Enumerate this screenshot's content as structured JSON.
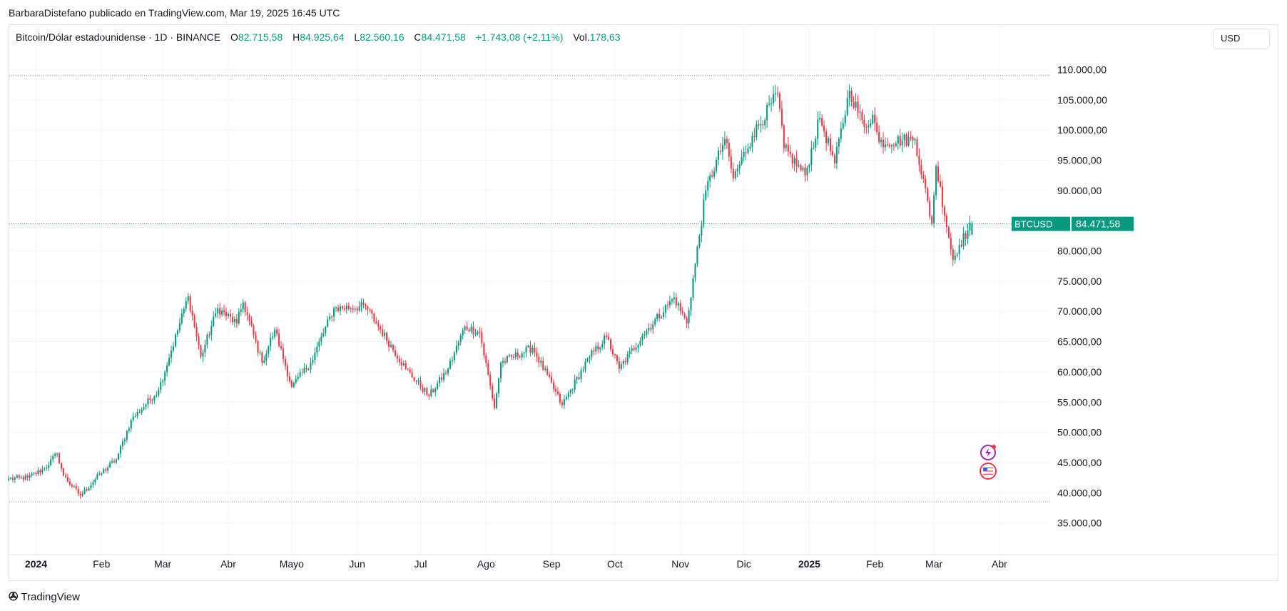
{
  "header": {
    "published": "BarbaraDistefano publicado en TradingView.com, Mar 19, 2025 16:45 UTC"
  },
  "legend": {
    "symbol": "Bitcoin/Dólar estadounidense · 1D · BINANCE",
    "o_label": "O",
    "o_value": "82.715,58",
    "h_label": "H",
    "h_value": "84.925,64",
    "l_label": "L",
    "l_value": "82.560,16",
    "c_label": "C",
    "c_value": "84.471,58",
    "change": "+1.743,08 (+2,11%)",
    "vol_label": "Vol.",
    "vol_value": "178,63"
  },
  "currency_button": "USD",
  "price_tag": {
    "symbol": "BTCUSD",
    "price": "84.471,58",
    "color": "#089981"
  },
  "footer": {
    "brand": "TradingView"
  },
  "colors": {
    "up": "#089981",
    "down": "#f23645",
    "grid": "#f0f3fa",
    "text": "#131722"
  },
  "icons": [
    "lightning-event-icon",
    "us-flag-event-icon"
  ],
  "chart_data": {
    "type": "candlestick",
    "ylim": [
      30000,
      113000
    ],
    "y_ticks": [
      {
        "value": 110000,
        "label": "110.000,00"
      },
      {
        "value": 105000,
        "label": "105.000,00"
      },
      {
        "value": 100000,
        "label": "100.000,00"
      },
      {
        "value": 95000,
        "label": "95.000,00"
      },
      {
        "value": 90000,
        "label": "90.000,00"
      },
      {
        "value": 85000,
        "label": "85.000,00"
      },
      {
        "value": 80000,
        "label": "80.000,00"
      },
      {
        "value": 75000,
        "label": "75.000,00"
      },
      {
        "value": 70000,
        "label": "70.000,00"
      },
      {
        "value": 65000,
        "label": "65.000,00"
      },
      {
        "value": 60000,
        "label": "60.000,00"
      },
      {
        "value": 55000,
        "label": "55.000,00"
      },
      {
        "value": 50000,
        "label": "50.000,00"
      },
      {
        "value": 45000,
        "label": "45.000,00"
      },
      {
        "value": 40000,
        "label": "40.000,00"
      },
      {
        "value": 35000,
        "label": "35.000,00"
      }
    ],
    "x_ticks": [
      {
        "date": "2024-01-01",
        "label": "2024",
        "bold": true
      },
      {
        "date": "2024-02-01",
        "label": "Feb"
      },
      {
        "date": "2024-03-01",
        "label": "Mar"
      },
      {
        "date": "2024-04-01",
        "label": "Abr"
      },
      {
        "date": "2024-05-01",
        "label": "Mayo"
      },
      {
        "date": "2024-06-01",
        "label": "Jun"
      },
      {
        "date": "2024-07-01",
        "label": "Jul"
      },
      {
        "date": "2024-08-01",
        "label": "Ago"
      },
      {
        "date": "2024-09-01",
        "label": "Sep"
      },
      {
        "date": "2024-10-01",
        "label": "Oct"
      },
      {
        "date": "2024-11-01",
        "label": "Nov"
      },
      {
        "date": "2024-12-01",
        "label": "Dic"
      },
      {
        "date": "2025-01-01",
        "label": "2025",
        "bold": true
      },
      {
        "date": "2025-02-01",
        "label": "Feb"
      },
      {
        "date": "2025-03-01",
        "label": "Mar"
      },
      {
        "date": "2025-04-01",
        "label": "Abr"
      }
    ],
    "x_range": [
      "2023-12-19",
      "2025-04-25"
    ],
    "reference_lines": [
      {
        "value": 109000,
        "style": "dotted",
        "color": "#787b86"
      },
      {
        "value": 38500,
        "style": "dotted",
        "color": "#787b86"
      },
      {
        "value": 84471.58,
        "style": "dotted",
        "color": "#089981"
      }
    ],
    "anchors": [
      {
        "date": "2023-12-19",
        "close": 42300
      },
      {
        "date": "2023-12-28",
        "close": 42500
      },
      {
        "date": "2024-01-05",
        "close": 44000
      },
      {
        "date": "2024-01-11",
        "close": 46500
      },
      {
        "date": "2024-01-14",
        "close": 42800
      },
      {
        "date": "2024-01-22",
        "close": 39500
      },
      {
        "date": "2024-01-31",
        "close": 43000
      },
      {
        "date": "2024-02-08",
        "close": 45500
      },
      {
        "date": "2024-02-15",
        "close": 52000
      },
      {
        "date": "2024-02-28",
        "close": 57000
      },
      {
        "date": "2024-03-05",
        "close": 63500
      },
      {
        "date": "2024-03-13",
        "close": 72500
      },
      {
        "date": "2024-03-19",
        "close": 62500
      },
      {
        "date": "2024-03-27",
        "close": 70500
      },
      {
        "date": "2024-04-05",
        "close": 68000
      },
      {
        "date": "2024-04-08",
        "close": 71500
      },
      {
        "date": "2024-04-17",
        "close": 61500
      },
      {
        "date": "2024-04-23",
        "close": 67000
      },
      {
        "date": "2024-05-01",
        "close": 57500
      },
      {
        "date": "2024-05-10",
        "close": 61500
      },
      {
        "date": "2024-05-21",
        "close": 70500
      },
      {
        "date": "2024-06-05",
        "close": 70800
      },
      {
        "date": "2024-06-12",
        "close": 67000
      },
      {
        "date": "2024-06-24",
        "close": 60500
      },
      {
        "date": "2024-07-05",
        "close": 56000
      },
      {
        "date": "2024-07-14",
        "close": 60500
      },
      {
        "date": "2024-07-22",
        "close": 67500
      },
      {
        "date": "2024-07-29",
        "close": 66500
      },
      {
        "date": "2024-08-05",
        "close": 54000
      },
      {
        "date": "2024-08-08",
        "close": 61500
      },
      {
        "date": "2024-08-23",
        "close": 64000
      },
      {
        "date": "2024-09-06",
        "close": 54500
      },
      {
        "date": "2024-09-19",
        "close": 62500
      },
      {
        "date": "2024-09-27",
        "close": 65800
      },
      {
        "date": "2024-10-03",
        "close": 60500
      },
      {
        "date": "2024-10-14",
        "close": 66000
      },
      {
        "date": "2024-10-29",
        "close": 72300
      },
      {
        "date": "2024-11-04",
        "close": 68000
      },
      {
        "date": "2024-11-13",
        "close": 90000
      },
      {
        "date": "2024-11-22",
        "close": 98500
      },
      {
        "date": "2024-11-26",
        "close": 92000
      },
      {
        "date": "2024-12-05",
        "close": 99000
      },
      {
        "date": "2024-12-17",
        "close": 106000
      },
      {
        "date": "2024-12-20",
        "close": 97000
      },
      {
        "date": "2024-12-30",
        "close": 92500
      },
      {
        "date": "2025-01-06",
        "close": 102000
      },
      {
        "date": "2025-01-13",
        "close": 94500
      },
      {
        "date": "2025-01-20",
        "close": 106500
      },
      {
        "date": "2025-01-27",
        "close": 100500
      },
      {
        "date": "2025-01-31",
        "close": 102500
      },
      {
        "date": "2025-02-03",
        "close": 98000
      },
      {
        "date": "2025-02-20",
        "close": 98500
      },
      {
        "date": "2025-02-28",
        "close": 84500
      },
      {
        "date": "2025-03-02",
        "close": 94000
      },
      {
        "date": "2025-03-10",
        "close": 78500
      },
      {
        "date": "2025-03-13",
        "close": 81000
      },
      {
        "date": "2025-03-19",
        "close": 84471.58
      }
    ]
  }
}
